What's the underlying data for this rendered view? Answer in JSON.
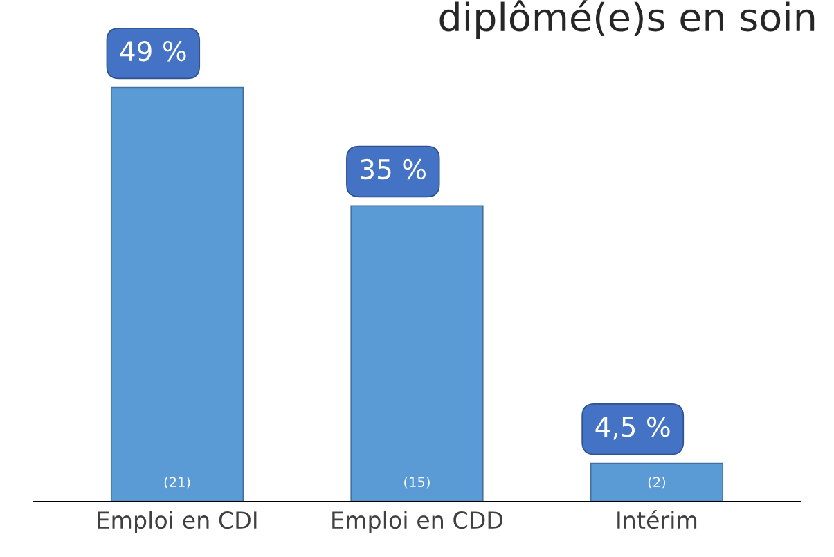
{
  "chart_data": {
    "type": "bar",
    "title": "diplômé(e)s en soin",
    "categories": [
      "Emploi en CDI",
      "Emploi en CDD",
      "Intérim"
    ],
    "values": [
      49,
      35,
      4.5
    ],
    "value_labels": [
      "49 %",
      "35 %",
      "4,5 %"
    ],
    "color": "#5b9bd5",
    "tick_labels": "x",
    "grid": false,
    "annotations": [
      "(21)",
      "(15)",
      "(2)"
    ]
  }
}
